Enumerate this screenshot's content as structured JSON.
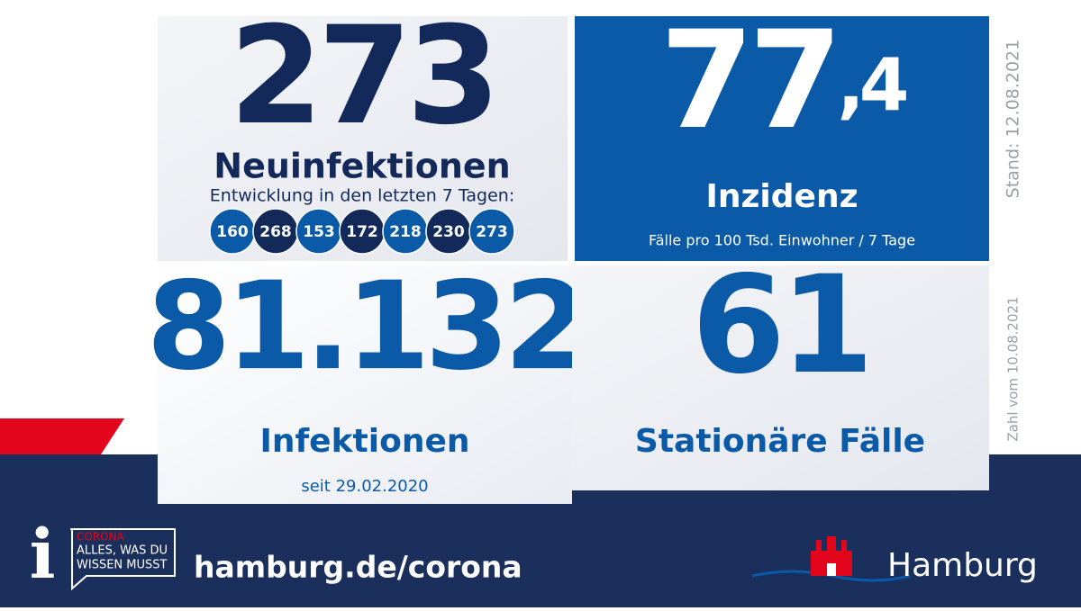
{
  "tiles": {
    "new_infections": {
      "value": "273",
      "label": "Neuinfektionen",
      "subtitle": "Entwicklung in den letzten 7 Tagen:",
      "history": [
        160,
        268,
        153,
        172,
        218,
        230,
        273
      ]
    },
    "incidence": {
      "value": {
        "whole": "77",
        "fraction": ",4"
      },
      "label": "Inzidenz",
      "subtitle": "Fälle pro 100 Tsd. Einwohner / 7 Tage"
    },
    "infections": {
      "value": "81.132",
      "label": "Infektionen",
      "subtitle": "seit 29.02.2020"
    },
    "hospital": {
      "value": "61",
      "label": "Stationäre Fälle"
    }
  },
  "side_notes": {
    "stand": "Stand: 12.08.2021",
    "zahl": "Zahl vom 10.08.2021"
  },
  "footer": {
    "badge": {
      "top": "CORONA",
      "line1": "ALLES, WAS DU",
      "line2": "WISSEN MUSST"
    },
    "url": "hamburg.de/corona",
    "brand": "Hamburg"
  }
}
